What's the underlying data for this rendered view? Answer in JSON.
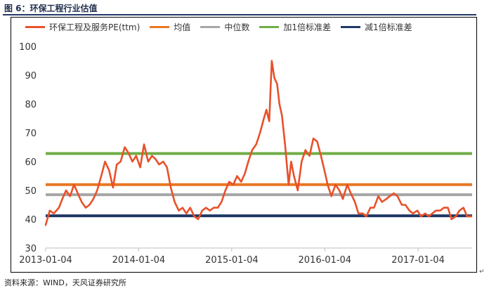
{
  "caption": {
    "text": "图 6：环保工程行业估值"
  },
  "source": {
    "text": "资料来源：WIND，天风证券研究所"
  },
  "legend": [
    {
      "label": "环保工程及服务PE(ttm)",
      "color": "#e8512a"
    },
    {
      "label": "均值",
      "color": "#e87722"
    },
    {
      "label": "中位数",
      "color": "#a6a6a6"
    },
    {
      "label": "加1倍标准差",
      "color": "#70ad47"
    },
    {
      "label": "减1倍标准差",
      "color": "#1f3864"
    }
  ],
  "chart_data": {
    "type": "line",
    "title": "",
    "xlabel": "",
    "ylabel": "",
    "ylim": [
      30,
      100
    ],
    "yticks": [
      30,
      40,
      50,
      60,
      70,
      80,
      90,
      100
    ],
    "xlim": [
      "2013-01-04",
      "2017-08-04"
    ],
    "xticks": [
      "2013-01-04",
      "2014-01-04",
      "2015-01-04",
      "2016-01-04",
      "2017-01-04"
    ],
    "grid": false,
    "legend_position": "top",
    "series": [
      {
        "name": "环保工程及服务PE(ttm)",
        "color": "#e8512a",
        "x": [
          "2013-01-04",
          "2013-01-20",
          "2013-02-05",
          "2013-02-25",
          "2013-03-10",
          "2013-03-25",
          "2013-04-10",
          "2013-04-25",
          "2013-05-10",
          "2013-05-25",
          "2013-06-10",
          "2013-06-25",
          "2013-07-10",
          "2013-07-25",
          "2013-08-10",
          "2013-08-25",
          "2013-09-10",
          "2013-09-25",
          "2013-10-10",
          "2013-10-25",
          "2013-11-10",
          "2013-11-25",
          "2013-12-10",
          "2013-12-25",
          "2014-01-10",
          "2014-01-25",
          "2014-02-10",
          "2014-02-25",
          "2014-03-10",
          "2014-03-25",
          "2014-04-10",
          "2014-04-25",
          "2014-05-10",
          "2014-05-25",
          "2014-06-10",
          "2014-06-25",
          "2014-07-10",
          "2014-07-25",
          "2014-08-10",
          "2014-08-25",
          "2014-09-10",
          "2014-09-25",
          "2014-10-10",
          "2014-10-25",
          "2014-11-10",
          "2014-11-25",
          "2014-12-10",
          "2014-12-25",
          "2015-01-10",
          "2015-01-25",
          "2015-02-10",
          "2015-02-25",
          "2015-03-10",
          "2015-03-25",
          "2015-04-10",
          "2015-04-25",
          "2015-05-10",
          "2015-05-20",
          "2015-05-31",
          "2015-06-10",
          "2015-06-20",
          "2015-07-01",
          "2015-07-10",
          "2015-07-20",
          "2015-08-01",
          "2015-08-15",
          "2015-08-25",
          "2015-09-05",
          "2015-09-20",
          "2015-10-05",
          "2015-10-20",
          "2015-11-05",
          "2015-11-20",
          "2015-12-05",
          "2015-12-20",
          "2016-01-05",
          "2016-01-15",
          "2016-01-30",
          "2016-02-15",
          "2016-03-01",
          "2016-03-15",
          "2016-04-01",
          "2016-04-15",
          "2016-05-01",
          "2016-05-15",
          "2016-06-01",
          "2016-06-15",
          "2016-07-01",
          "2016-07-15",
          "2016-08-01",
          "2016-08-15",
          "2016-09-01",
          "2016-09-15",
          "2016-10-01",
          "2016-10-15",
          "2016-11-01",
          "2016-11-15",
          "2016-12-01",
          "2016-12-15",
          "2017-01-01",
          "2017-01-15",
          "2017-02-01",
          "2017-02-15",
          "2017-03-01",
          "2017-03-15",
          "2017-04-01",
          "2017-04-15",
          "2017-05-01",
          "2017-05-15",
          "2017-06-01",
          "2017-06-15",
          "2017-07-01",
          "2017-07-15",
          "2017-08-01"
        ],
        "y": [
          38,
          43,
          42,
          44,
          47,
          50,
          48,
          52,
          49,
          46,
          44,
          45,
          47,
          50,
          55,
          60,
          57,
          51,
          59,
          60,
          65,
          63,
          60,
          62,
          58,
          66,
          60,
          62,
          61,
          59,
          60,
          58,
          51,
          46,
          43,
          44,
          42,
          44,
          41,
          40,
          43,
          44,
          43,
          44,
          44,
          46,
          50,
          53,
          52,
          55,
          53,
          56,
          60,
          64,
          66,
          70,
          75,
          78,
          74,
          95,
          89,
          87,
          80,
          76,
          66,
          52,
          60,
          55,
          50,
          60,
          64,
          62,
          68,
          67,
          62,
          56,
          52,
          48,
          52,
          50,
          47,
          52,
          49,
          46,
          42,
          42,
          41,
          44,
          44,
          48,
          46,
          47,
          48,
          49,
          48,
          45,
          45,
          43,
          42,
          43,
          41,
          42,
          41,
          42,
          43,
          43,
          44,
          44,
          40,
          41,
          43,
          44,
          41,
          41
        ]
      },
      {
        "name": "均值",
        "color": "#e87722",
        "x": [
          "2013-01-04",
          "2017-08-04"
        ],
        "y": [
          52.0,
          52.0
        ]
      },
      {
        "name": "中位数",
        "color": "#a6a6a6",
        "x": [
          "2013-01-04",
          "2017-08-04"
        ],
        "y": [
          48.5,
          48.5
        ]
      },
      {
        "name": "加1倍标准差",
        "color": "#70ad47",
        "x": [
          "2013-01-04",
          "2017-08-04"
        ],
        "y": [
          62.8,
          62.8
        ]
      },
      {
        "name": "减1倍标准差",
        "color": "#1f3864",
        "x": [
          "2013-01-04",
          "2017-08-04"
        ],
        "y": [
          41.2,
          41.2
        ]
      }
    ]
  }
}
